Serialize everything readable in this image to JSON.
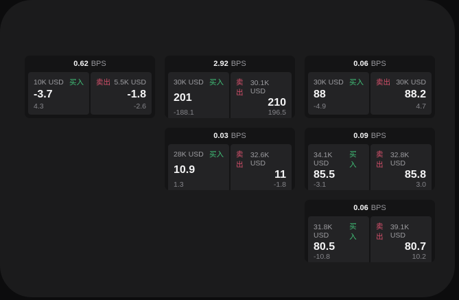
{
  "side_labels": {
    "buy": "买入",
    "sell": "卖出"
  },
  "colors": {
    "panel": "#1b1b1c",
    "card": "#141415",
    "pane": "#232325",
    "buy_green": "#40bf77",
    "sell_red": "#d5506b"
  },
  "cards": [
    {
      "bps_value": "0.62",
      "bps_unit": "BPS",
      "buy": {
        "size": "10K USD",
        "side": "买入",
        "value": "-3.7",
        "delta": "4.3"
      },
      "sell": {
        "size": "5.5K USD",
        "side": "卖出",
        "value": "-1.8",
        "delta": "-2.6"
      }
    },
    {
      "bps_value": "2.92",
      "bps_unit": "BPS",
      "buy": {
        "size": "30K USD",
        "side": "买入",
        "value": "201",
        "delta": "-188.1"
      },
      "sell": {
        "size": "30.1K USD",
        "side": "卖出",
        "value": "210",
        "delta": "196.5"
      }
    },
    {
      "bps_value": "0.06",
      "bps_unit": "BPS",
      "buy": {
        "size": "30K USD",
        "side": "买入",
        "value": "88",
        "delta": "-4.9"
      },
      "sell": {
        "size": "30K USD",
        "side": "卖出",
        "value": "88.2",
        "delta": "4.7"
      }
    },
    {
      "bps_value": "0.03",
      "bps_unit": "BPS",
      "buy": {
        "size": "28K USD",
        "side": "买入",
        "value": "10.9",
        "delta": "1.3"
      },
      "sell": {
        "size": "32.6K USD",
        "side": "卖出",
        "value": "11",
        "delta": "-1.8"
      }
    },
    {
      "bps_value": "0.09",
      "bps_unit": "BPS",
      "buy": {
        "size": "34.1K USD",
        "side": "买入",
        "value": "85.5",
        "delta": "-3.1"
      },
      "sell": {
        "side": "卖出",
        "size": "32.8K USD",
        "value": "85.8",
        "delta": "3.0"
      }
    },
    {
      "bps_value": "0.06",
      "bps_unit": "BPS",
      "buy": {
        "size": "31.8K USD",
        "side": "买入",
        "value": "80.5",
        "delta": "-10.8"
      },
      "sell": {
        "size": "39.1K USD",
        "side": "卖出",
        "value": "80.7",
        "delta": "10.2"
      }
    }
  ]
}
